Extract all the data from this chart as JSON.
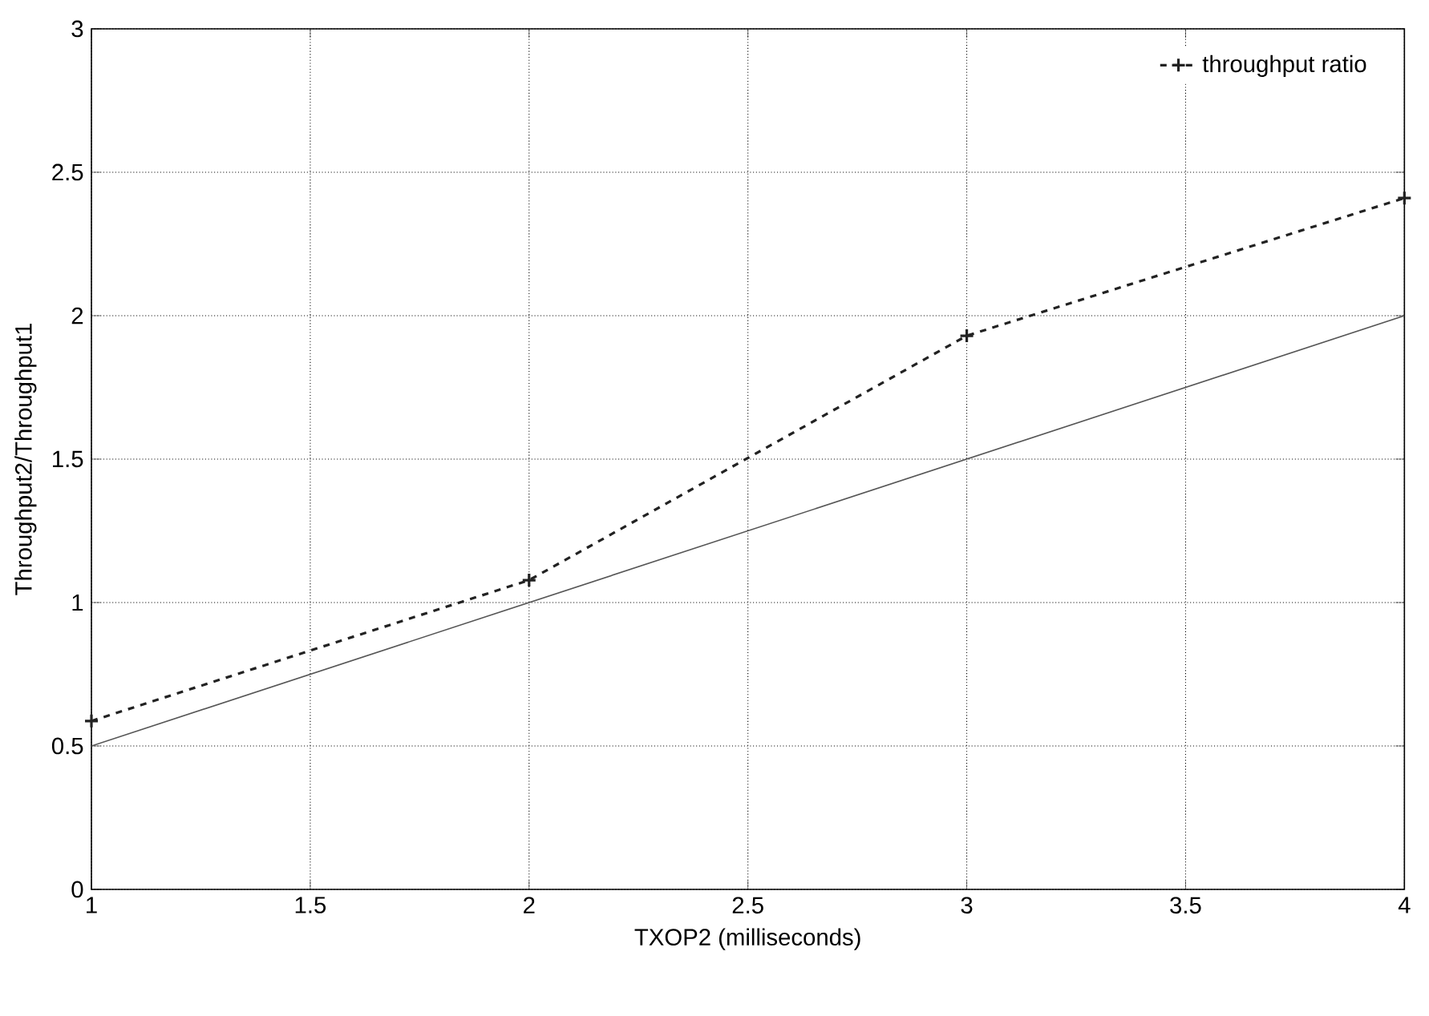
{
  "chart_data": {
    "type": "line",
    "xlabel": "TXOP2 (milliseconds)",
    "ylabel": "Throughput2/Throughput1",
    "x": [
      1,
      2,
      3,
      4
    ],
    "series": [
      {
        "name": "throughput ratio",
        "color": "#222222",
        "values": [
          0.587,
          1.078,
          1.93,
          2.41
        ]
      },
      {
        "color": "#555555",
        "x": [
          1,
          4
        ],
        "values": [
          0.5,
          2
        ],
        "marker": "none",
        "line_style": "solid"
      }
    ],
    "xlim": [
      1,
      4
    ],
    "ylim": [
      0,
      3
    ],
    "xticks": [
      1,
      1.5,
      2,
      2.5,
      3,
      3.5,
      4
    ],
    "yticks": [
      0,
      0.5,
      1,
      1.5,
      2,
      2.5,
      3
    ],
    "grid": true,
    "legend": "top right",
    "marker": "cross",
    "line_style": "dashed"
  }
}
